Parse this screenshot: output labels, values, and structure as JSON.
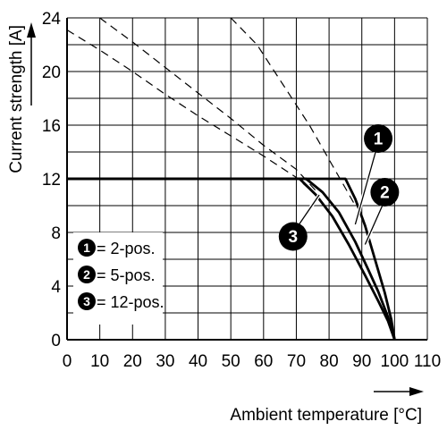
{
  "chart_data": {
    "type": "line",
    "title": "",
    "xlabel": "Ambient temperature [°C]",
    "ylabel": "Current strength [A]",
    "xlim": [
      0,
      110
    ],
    "ylim": [
      0,
      24
    ],
    "x_ticks": [
      0,
      10,
      20,
      30,
      40,
      50,
      60,
      70,
      80,
      90,
      100,
      110
    ],
    "y_ticks": [
      0,
      4,
      8,
      12,
      16,
      20,
      24
    ],
    "grid": true,
    "legend_position": "bottom-left",
    "legend": [
      {
        "marker": "1",
        "label": "= 2-pos."
      },
      {
        "marker": "2",
        "label": "= 5-pos."
      },
      {
        "marker": "3",
        "label": "= 12-pos."
      }
    ],
    "series": [
      {
        "marker": "1",
        "style": "solid",
        "points": [
          [
            0,
            12
          ],
          [
            85,
            12
          ],
          [
            88,
            10.5
          ],
          [
            91,
            8.5
          ],
          [
            94,
            6
          ],
          [
            97,
            3.5
          ],
          [
            99,
            1.5
          ],
          [
            100,
            0
          ]
        ]
      },
      {
        "marker": "2",
        "style": "solid",
        "points": [
          [
            0,
            12
          ],
          [
            73,
            12
          ],
          [
            78,
            11
          ],
          [
            83,
            9.5
          ],
          [
            88,
            7.3
          ],
          [
            92,
            5.2
          ],
          [
            95,
            3.6
          ],
          [
            98,
            1.7
          ],
          [
            100,
            0
          ]
        ]
      },
      {
        "marker": "3",
        "style": "solid",
        "points": [
          [
            0,
            12
          ],
          [
            71,
            12
          ],
          [
            76,
            10.8
          ],
          [
            81,
            9.2
          ],
          [
            86,
            7.1
          ],
          [
            91,
            4.8
          ],
          [
            95,
            2.9
          ],
          [
            98,
            1.4
          ],
          [
            100,
            0
          ]
        ]
      },
      {
        "marker": "1",
        "style": "dashed",
        "points": [
          [
            50,
            24
          ],
          [
            58,
            22
          ],
          [
            66,
            19
          ],
          [
            74,
            16
          ],
          [
            81,
            13
          ],
          [
            85,
            11.3
          ],
          [
            88,
            10
          ]
        ]
      },
      {
        "marker": "2",
        "style": "dashed",
        "points": [
          [
            10,
            24
          ],
          [
            20,
            22.2
          ],
          [
            30,
            20.3
          ],
          [
            40,
            18.4
          ],
          [
            50,
            16.5
          ],
          [
            60,
            14.5
          ],
          [
            70,
            12.7
          ],
          [
            76,
            11.1
          ]
        ]
      },
      {
        "marker": "3",
        "style": "dashed",
        "points": [
          [
            0,
            23.1
          ],
          [
            10,
            21.6
          ],
          [
            20,
            20
          ],
          [
            30,
            18.3
          ],
          [
            40,
            16.7
          ],
          [
            50,
            15.2
          ],
          [
            60,
            13.7
          ],
          [
            70,
            12.1
          ],
          [
            75,
            11
          ]
        ]
      }
    ],
    "markers_on_plot": [
      {
        "marker": "1",
        "x": 95,
        "y": 15
      },
      {
        "marker": "2",
        "x": 97,
        "y": 11
      },
      {
        "marker": "3",
        "x": 69,
        "y": 7.7
      }
    ]
  }
}
